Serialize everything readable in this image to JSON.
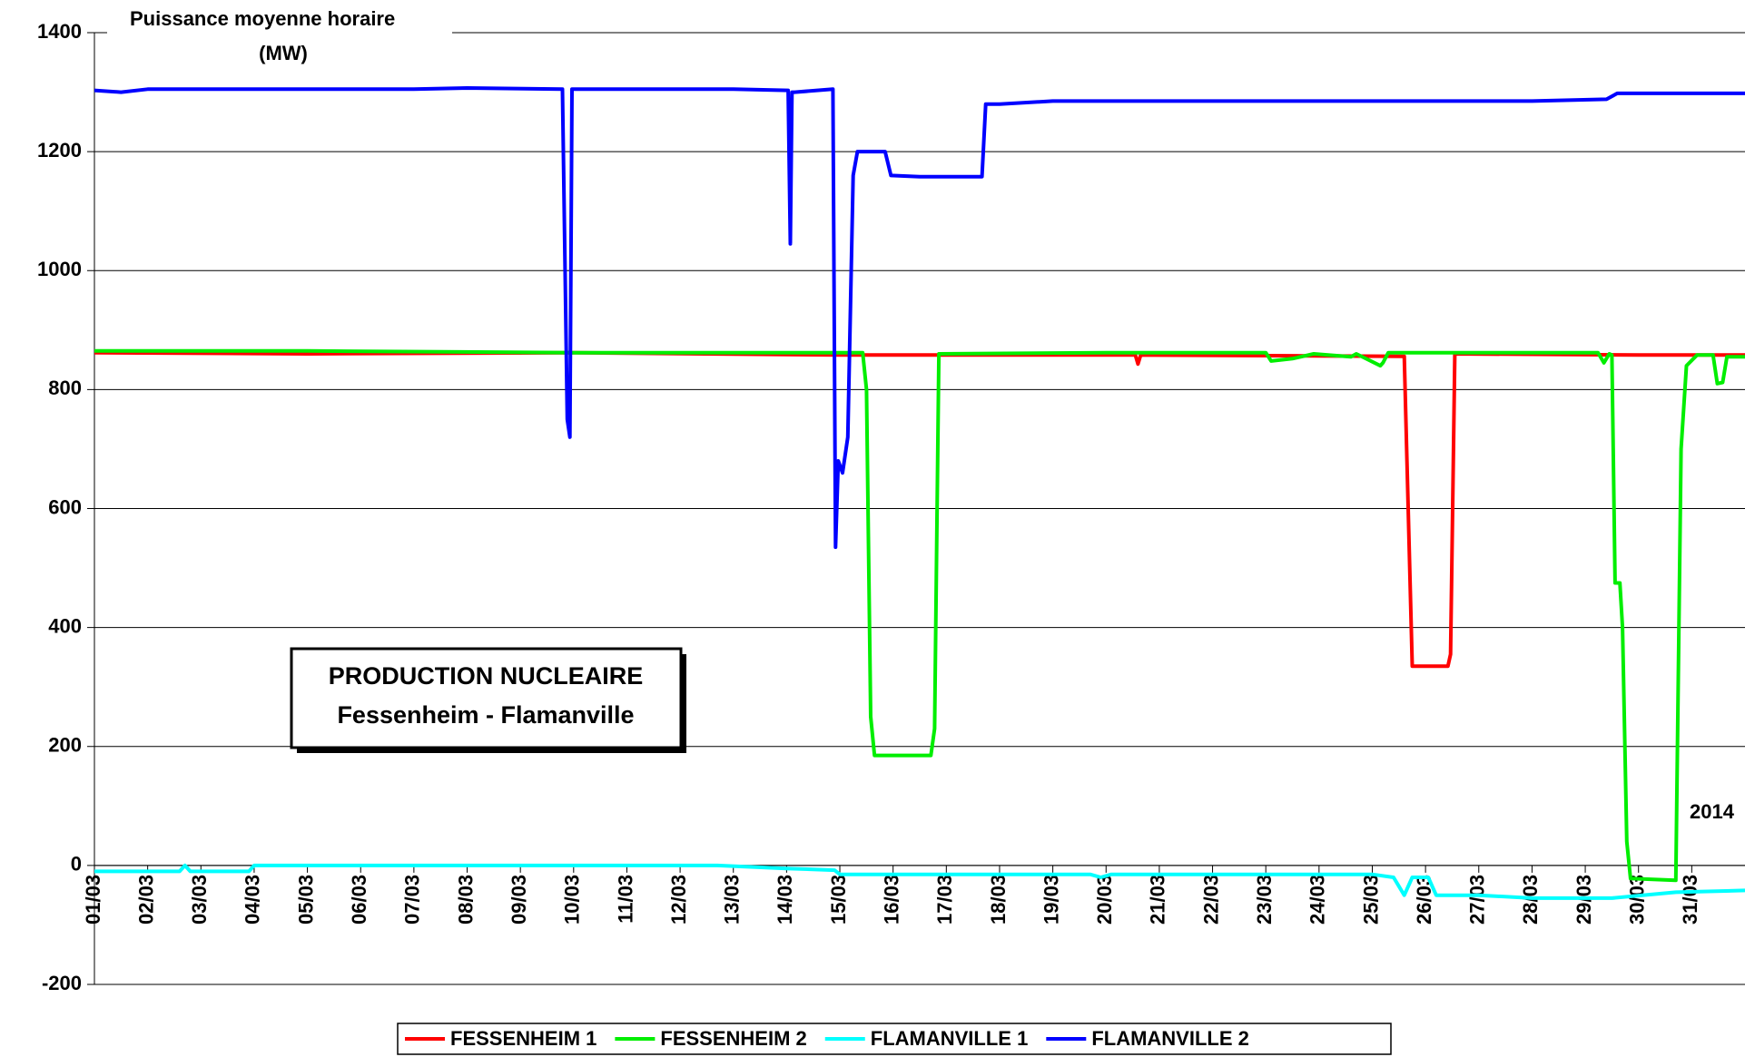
{
  "chart_data": {
    "type": "line",
    "title": "Puissance moyenne horaire",
    "y_label": "(MW)",
    "box_title": "PRODUCTION NUCLEAIRE",
    "box_subtitle": "Fessenheim - Flamanville",
    "annotation": "2014",
    "xlim": [
      1,
      32
    ],
    "xticks": [
      {
        "value": 1,
        "label": "01/03"
      },
      {
        "value": 2,
        "label": "02/03"
      },
      {
        "value": 3,
        "label": "03/03"
      },
      {
        "value": 4,
        "label": "04/03"
      },
      {
        "value": 5,
        "label": "05/03"
      },
      {
        "value": 6,
        "label": "06/03"
      },
      {
        "value": 7,
        "label": "07/03"
      },
      {
        "value": 8,
        "label": "08/03"
      },
      {
        "value": 9,
        "label": "09/03"
      },
      {
        "value": 10,
        "label": "10/03"
      },
      {
        "value": 11,
        "label": "11/03"
      },
      {
        "value": 12,
        "label": "12/03"
      },
      {
        "value": 13,
        "label": "13/03"
      },
      {
        "value": 14,
        "label": "14/03"
      },
      {
        "value": 15,
        "label": "15/03"
      },
      {
        "value": 16,
        "label": "16/03"
      },
      {
        "value": 17,
        "label": "17/03"
      },
      {
        "value": 18,
        "label": "18/03"
      },
      {
        "value": 19,
        "label": "19/03"
      },
      {
        "value": 20,
        "label": "20/03"
      },
      {
        "value": 21,
        "label": "21/03"
      },
      {
        "value": 22,
        "label": "22/03"
      },
      {
        "value": 23,
        "label": "23/03"
      },
      {
        "value": 24,
        "label": "24/03"
      },
      {
        "value": 25,
        "label": "25/03"
      },
      {
        "value": 26,
        "label": "26/03"
      },
      {
        "value": 27,
        "label": "27/03"
      },
      {
        "value": 28,
        "label": "28/03"
      },
      {
        "value": 29,
        "label": "29/03"
      },
      {
        "value": 30,
        "label": "30/03"
      },
      {
        "value": 31,
        "label": "31/03"
      }
    ],
    "ylim": [
      -200,
      1400
    ],
    "yticks": [
      -200,
      0,
      200,
      400,
      600,
      800,
      1000,
      1200,
      1400
    ],
    "grid": true,
    "legend": "bottom",
    "series": [
      {
        "name": "FESSENHEIM 1",
        "color": "#ff0000",
        "x": [
          1,
          5,
          10,
          15,
          20.55,
          20.6,
          20.65,
          25.6,
          25.75,
          26.42,
          26.47,
          26.55,
          30,
          32
        ],
        "values": [
          862,
          860,
          862,
          858,
          858,
          843,
          858,
          856,
          335,
          335,
          355,
          860,
          858,
          858
        ]
      },
      {
        "name": "FESSENHEIM 2",
        "color": "#00ee00",
        "x": [
          1,
          5,
          10,
          15.43,
          15.5,
          15.58,
          15.65,
          16.71,
          16.78,
          16.86,
          20,
          23,
          23.1,
          23.5,
          23.9,
          24.6,
          24.7,
          25.15,
          25.2,
          25.3,
          29.24,
          29.35,
          29.45,
          29.5,
          29.56,
          29.65,
          29.7,
          29.78,
          29.85,
          30.7,
          30.8,
          30.9,
          31.1,
          31.4,
          31.48,
          31.58,
          31.66,
          32
        ],
        "values": [
          865,
          865,
          862,
          862,
          800,
          250,
          185,
          185,
          230,
          860,
          862,
          862,
          848,
          852,
          860,
          855,
          860,
          840,
          845,
          862,
          862,
          845,
          860,
          858,
          475,
          475,
          400,
          40,
          -22,
          -25,
          700,
          840,
          858,
          858,
          810,
          812,
          855,
          855
        ]
      },
      {
        "name": "FLAMANVILLE 1",
        "color": "#00ffff",
        "x": [
          1,
          2.6,
          2.7,
          2.8,
          3.9,
          4,
          12.7,
          14,
          14.9,
          15,
          19.7,
          19.9,
          20.1,
          25,
          25.4,
          25.6,
          25.75,
          26.05,
          26.2,
          27,
          28,
          29.5,
          30.7,
          32
        ],
        "values": [
          -10,
          -10,
          0,
          -10,
          -10,
          0,
          0,
          -5,
          -8,
          -15,
          -15,
          -20,
          -15,
          -15,
          -20,
          -50,
          -20,
          -20,
          -50,
          -50,
          -55,
          -55,
          -45,
          -42
        ]
      },
      {
        "name": "FLAMANVILLE 2",
        "color": "#0000ff",
        "x": [
          1,
          1.5,
          2,
          3,
          5,
          7,
          8,
          9.79,
          9.88,
          9.93,
          9.97,
          11,
          13,
          14.03,
          14.07,
          14.1,
          14.15,
          14.87,
          14.92,
          14.97,
          15.05,
          15.15,
          15.25,
          15.33,
          15.85,
          15.96,
          16.5,
          17.67,
          17.74,
          18,
          19,
          20,
          21,
          22,
          23,
          24,
          25,
          26,
          27,
          28,
          29.4,
          29.6,
          30,
          30.5,
          31,
          32
        ],
        "values": [
          1303,
          1300,
          1305,
          1305,
          1305,
          1305,
          1307,
          1305,
          750,
          720,
          1305,
          1305,
          1305,
          1303,
          1045,
          1300,
          1300,
          1305,
          535,
          680,
          660,
          720,
          1160,
          1200,
          1200,
          1160,
          1158,
          1158,
          1280,
          1280,
          1285,
          1285,
          1285,
          1285,
          1285,
          1285,
          1285,
          1285,
          1285,
          1285,
          1288,
          1298,
          1298,
          1298,
          1298,
          1298
        ]
      }
    ]
  }
}
